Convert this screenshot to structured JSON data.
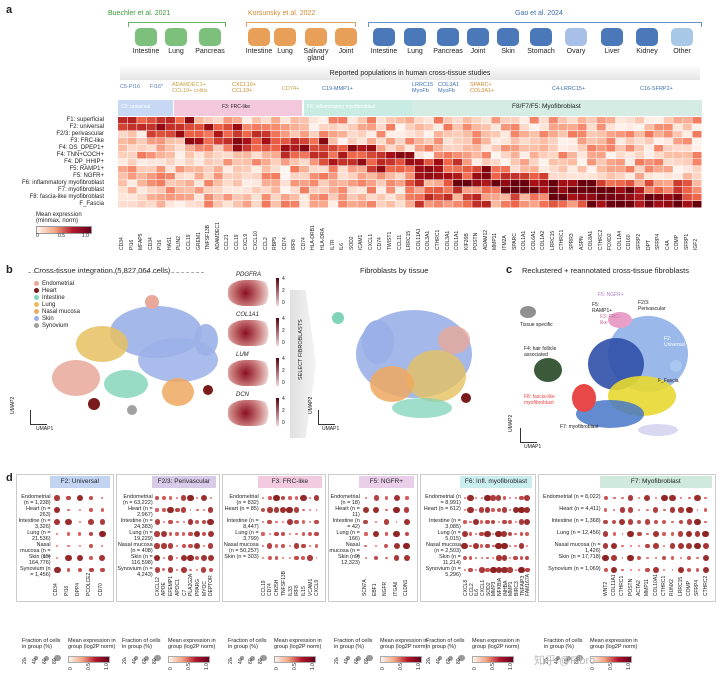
{
  "panel_a": {
    "label": "a",
    "studies": [
      "Buechler et al. 2021",
      "Korsunsky et al. 2022",
      "Gao et al. 2024"
    ],
    "organs_1": [
      "Intestine",
      "Lung",
      "Pancreas"
    ],
    "organs_2": [
      "Intestine",
      "Lung",
      "Salivary gland",
      "Joint"
    ],
    "organs_3": [
      "Intestine",
      "Lung",
      "Pancreas",
      "Joint",
      "Skin",
      "Stomach",
      "Ovary",
      "Liver",
      "Kidney",
      "Other"
    ],
    "reported_title": "Reported populations in human cross-tissue studies",
    "pop_headers": [
      "C5-PI16",
      "FI16*",
      "ADAMDEC1+ CCL19+ colitis",
      "CXCL10+ CCL19+",
      "CD74+",
      "C19-MMP1+",
      "LRRC15 MyoFb",
      "COL3A1 MyoFb",
      "SPARC+ COL3A1+",
      "C4-LRRC15+",
      "C16-SFRP2+"
    ],
    "band_labels": [
      "C2: universal",
      "F3: FRC-like",
      "F6: inflammatory myofibroblast",
      "F8/F7/F5: Myofibroblast"
    ],
    "rows": [
      "F1: superficial",
      "F2: universal",
      "F2/3: perivascular",
      "F3: FRC-like",
      "F4: DS_DPEP1+",
      "F4: TNN+COCH+",
      "F4: DP_HHIP+",
      "F5: RAMP1+",
      "F5: NGFR+",
      "F6: inflammatory myofibroblast",
      "F7: myofibroblast",
      "F8: fascia-like myofibroblast",
      "F_Fascia"
    ],
    "genes": [
      "CD34",
      "PI16",
      "MFAP5",
      "CD34",
      "PI16",
      "HAS1",
      "PLIN2",
      "CCL19",
      "GREM1",
      "TNFSF13B",
      "ADAMDEC1",
      "CCL21",
      "CCL19",
      "CXCL9",
      "CXCL10",
      "CCL2",
      "RBP5",
      "CD74",
      "IRF8",
      "CD74",
      "HLA-DRB1",
      "HLA-DRA",
      "IL7R",
      "IL6",
      "SOD2",
      "ICAM1",
      "CXCL1",
      "CD74",
      "TWIST1",
      "CCL11",
      "LRRC15",
      "COL11A1",
      "COL3A1",
      "CTHRC1",
      "COL3A1",
      "COL1A1",
      "KIF26B",
      "POSTN",
      "ADAM12",
      "MMP11",
      "ITM2A",
      "SPARC",
      "COL1A1",
      "COL6A1",
      "COL1A2",
      "LRRC15",
      "CTHRC1",
      "SPRR3",
      "ASPN",
      "COL8A1",
      "CTHRC2",
      "FOXD2",
      "COL1A4",
      "CD160",
      "SFRP2",
      "DPT",
      "SFRP4",
      "C4A",
      "COMP",
      "SFRP1",
      "IGF2"
    ],
    "colorbar_title": "Mean expression (minmax, norm)",
    "colorbar_ticks": [
      "0",
      "0.5",
      "1.0"
    ]
  },
  "panel_b": {
    "label": "b",
    "title_left": "Cross-tissue integration (5,827,064 cells)",
    "legend": [
      {
        "name": "Endometrial",
        "color": "#e8a89a"
      },
      {
        "name": "Heart",
        "color": "#7a1a1a"
      },
      {
        "name": "Intestine",
        "color": "#7fd3b8"
      },
      {
        "name": "Lung",
        "color": "#e6c060"
      },
      {
        "name": "Nasal mucosa",
        "color": "#f0a860"
      },
      {
        "name": "Skin",
        "color": "#9bb0e8"
      },
      {
        "name": "Synovium",
        "color": "#a0a0a0"
      }
    ],
    "mini_genes": [
      "PDGFRA",
      "COL1A1",
      "LUM",
      "DCN"
    ],
    "mini_scale": [
      "4",
      "2",
      "0"
    ],
    "select_label": "SELECT FIBROBLASTS",
    "title_right": "Fibroblasts by tissue",
    "axis_x": "UMAP1",
    "axis_y": "UMAP2"
  },
  "panel_c": {
    "label": "c",
    "title": "Reclustered + reannotated cross-tissue fibroblasts",
    "clusters": [
      "F5: NGFR+",
      "F5: RAMP1+",
      "F3: FRC-like",
      "F2/3: Perivascular",
      "F2: Universal",
      "Tissue specific",
      "F4: hair follicle associated",
      "F_Fascia",
      "F8: fascia-like myofibroblast",
      "F7: myofibroblast",
      "F6: inflammatory myofibroblast"
    ],
    "axis_x": "UMAP1",
    "axis_y": "UMAP2"
  },
  "panel_d": {
    "label": "d",
    "panels": [
      {
        "title": "F2: Universal",
        "color": "#8fb0e8",
        "rows": [
          "Endometrial (n = 1,238)",
          "Heart (n = 263)",
          "Intestine (n = 3,326)",
          "Lung (n = 21,536)",
          "Nasal mucosa (n = 15)",
          "Skin (n = 164,776)",
          "Synovium (n = 1,456)"
        ],
        "genes": [
          "CD34",
          "PI16",
          "DPP4",
          "PCOLCE2",
          "CD70"
        ]
      },
      {
        "title": "F2/3: Perivascular",
        "color": "#b8a0d8",
        "rows": [
          "Endometrial (n = 63,222)",
          "Heart (n = 2,967)",
          "Intestine (n = 24,383)",
          "Lung (n = 19,229)",
          "Nasal mucosa (n = 408)",
          "Skin (n = 116,598)",
          "Synovium (n = 4,243)"
        ],
        "genes": [
          "CXCL12",
          "APOE",
          "EFEMP1",
          "APOC1",
          "C7",
          "PLA2G2A",
          "PPARG",
          "MYOC",
          "DEPTOR"
        ]
      },
      {
        "title": "F3: FRC-like",
        "color": "#e8a0c8",
        "rows": [
          "Endometrial (n = 832)",
          "Heart (n = 85)",
          "Intestine (n = 8,447)",
          "Lung (n = 3,799)",
          "Nasal mucosa (n = 50,257)",
          "Skin (n = 303)"
        ],
        "genes": [
          "CCL19",
          "CD74",
          "CH25H",
          "TNFSF13B",
          "IL33",
          "IRF8",
          "IL15",
          "VCAM1",
          "CXCL9"
        ]
      },
      {
        "title": "F5: NGFR+",
        "color": "#d8a8d8",
        "rows": [
          "Endometrial (n = 18)",
          "Heart (n = 11)",
          "Intestine (n = 42)",
          "Lung (n = 166)",
          "Nasal mucosa (n = 9)",
          "Skin (n = 12,323)"
        ],
        "genes": [
          "SCN7A",
          "EBF1",
          "NGFR",
          "ITGA6",
          "CLDN1"
        ]
      },
      {
        "title": "F6: Infl. myofibroblast",
        "color": "#9fe0e0",
        "rows": [
          "Endometrial (n = 8,991)",
          "Heart (n = 612)",
          "Intestine (n = 3,085)",
          "Lung (n = 5,015)",
          "Nasal mucosa (n = 2,503)",
          "Skin (n = 11,214)",
          "Synovium (n = 5,296)"
        ],
        "genes": [
          "CXCL8",
          "CCL2",
          "IL6",
          "CXCL1",
          "SOD2",
          "MMP3",
          "NFKBIA",
          "INHBA",
          "MMP1",
          "BIRC3",
          "TNFAIP3",
          "FAM167A"
        ]
      },
      {
        "title": "F7: Myofibroblast",
        "color": "#a8d8c0",
        "rows": [
          "Endometrial (n = 8,022)",
          "Heart (n = 4,411)",
          "Intestine (n = 1,368)",
          "Lung (n = 12,456)",
          "Nasal mucosa (n = 1,426)",
          "Skin (n = 17,718)",
          "Synovium (n = 1,069)"
        ],
        "genes": [
          "WNT2",
          "COL11A1",
          "CTHRC1",
          "POSTN",
          "ACTA2",
          "MMP11",
          "COL10A1",
          "CTHRC1",
          "RUNX2",
          "LRRC15",
          "COMP",
          "SFRP4",
          "CTHRC2"
        ]
      }
    ],
    "legend_fraction": "Fraction of cells in group (%)",
    "legend_fraction_ticks": [
      "20",
      "40",
      "60",
      "80"
    ],
    "legend_mean": "Mean expression in group (log2P norm)",
    "legend_mean_ticks": [
      "0",
      "0.5",
      "1.0"
    ]
  },
  "watermark": "知乎 @Fibro"
}
